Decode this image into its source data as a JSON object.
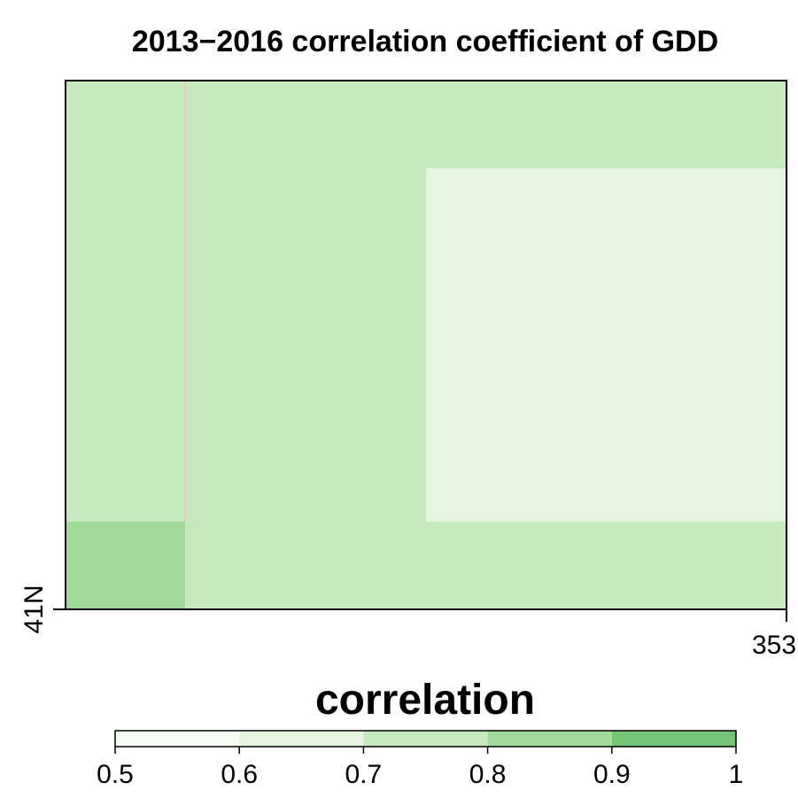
{
  "chart_data": {
    "type": "heatmap",
    "title": "2013−2016 correlation coefficient of GDD",
    "x_tick_labels": [
      "353"
    ],
    "y_tick_labels": [
      "41N"
    ],
    "cells": [
      {
        "region": "left-strip-upper",
        "value_range": [
          0.7,
          0.8
        ],
        "color": "#c7e9c0"
      },
      {
        "region": "left-strip-bottom",
        "value_range": [
          0.8,
          0.9
        ],
        "color": "#a1d99b"
      },
      {
        "region": "main-area",
        "value_range": [
          0.7,
          0.8
        ],
        "color": "#c7e9c0"
      },
      {
        "region": "right-inner-block",
        "value_range": [
          0.6,
          0.7
        ],
        "color": "#e5f5e0"
      }
    ],
    "legend": {
      "title": "correlation",
      "placement": "bottom",
      "breaks": [
        0.5,
        0.6,
        0.7,
        0.8,
        0.9,
        1.0
      ],
      "tick_labels": [
        "0.5",
        "0.6",
        "0.7",
        "0.8",
        "0.9",
        "1"
      ],
      "colors": [
        "#f7fcf5",
        "#e5f5e0",
        "#c7e9c0",
        "#a1d99b",
        "#74c476"
      ]
    }
  }
}
